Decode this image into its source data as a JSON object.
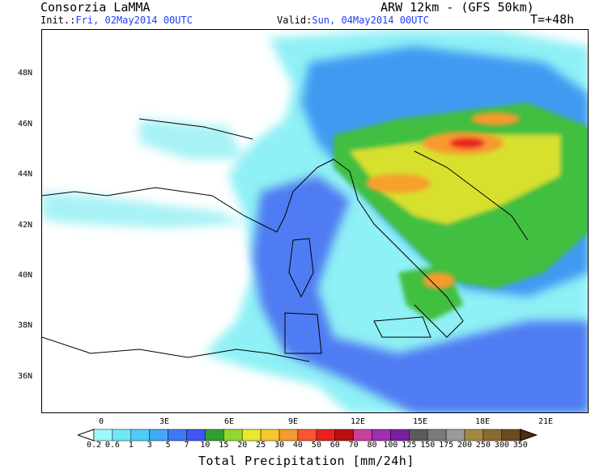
{
  "header": {
    "title": "Consorzia LaMMA",
    "model": "ARW 12km - (GFS 50km)",
    "init_label": "Init.:",
    "init_value": "Fri, 02May2014 00UTC",
    "valid_label": "Valid:",
    "valid_value": "Sun, 04May2014 00UTC",
    "forecast_step": "T=+48h"
  },
  "map": {
    "lat_labels": [
      "48N",
      "46N",
      "44N",
      "42N",
      "40N",
      "38N",
      "36N"
    ],
    "lon_labels": [
      "0",
      "3E",
      "6E",
      "9E",
      "12E",
      "15E",
      "18E",
      "21E"
    ]
  },
  "colorbar": {
    "title": "Total Precipitation [mm/24h]",
    "labels": [
      "0.2",
      "0.6",
      "1",
      "3",
      "5",
      "7",
      "10",
      "15",
      "20",
      "25",
      "30",
      "40",
      "50",
      "60",
      "70",
      "80",
      "100",
      "125",
      "150",
      "175",
      "200",
      "250",
      "300",
      "350"
    ],
    "colors": [
      "#9ff7f7",
      "#6ee8f7",
      "#4fcbf7",
      "#3fa8f7",
      "#3f78f7",
      "#3f55f7",
      "#2fa02f",
      "#8fd82f",
      "#e8e82f",
      "#f7c82f",
      "#f79a2f",
      "#f7562f",
      "#e82020",
      "#b80f0f",
      "#c83fa0",
      "#a02fb0",
      "#7a1fa0",
      "#5a5a5a",
      "#7a7a7a",
      "#9a9a9a",
      "#a08a3f",
      "#8a6a2f",
      "#6a4a1f",
      "#4a2f0f"
    ]
  }
}
